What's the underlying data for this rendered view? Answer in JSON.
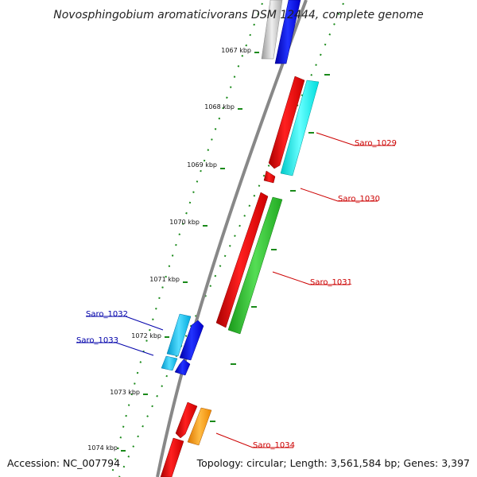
{
  "title": "Novosphingobium aromaticivorans DSM 12444, complete genome",
  "footer": {
    "accession": "Accession: NC_007794",
    "topology": "Topology: circular; Length: 3,561,584 bp; Genes: 3,397"
  },
  "kbp_labels": [
    "1067 kbp",
    "1068 kbp",
    "1069 kbp",
    "1070 kbp",
    "1071 kbp",
    "1072 kbp",
    "1073 kbp",
    "1074 kbp"
  ],
  "gene_labels": [
    {
      "name": "Saro_1029",
      "strand": "forward"
    },
    {
      "name": "Saro_1030",
      "strand": "forward"
    },
    {
      "name": "Saro_1031",
      "strand": "forward"
    },
    {
      "name": "Saro_1032",
      "strand": "reverse"
    },
    {
      "name": "Saro_1033",
      "strand": "reverse"
    },
    {
      "name": "Saro_1034",
      "strand": "forward"
    }
  ],
  "colors": {
    "backbone": "#888888",
    "forward_label": "#cc0000",
    "reverse_label": "#0000aa",
    "cds_red": "#ff0000",
    "cds_cyan": "#00ffff",
    "cds_green": "#33cc33",
    "cds_blue": "#0000ff",
    "cds_lightblue": "#00bbff",
    "cds_orange": "#ff9900",
    "cds_gray": "#bbbbbb",
    "tick": "#1a8a1a"
  }
}
